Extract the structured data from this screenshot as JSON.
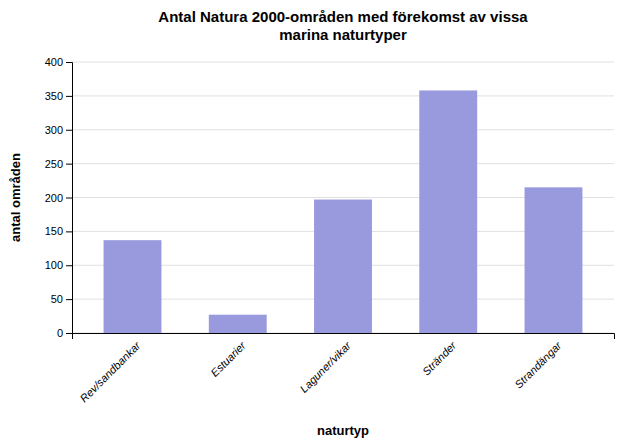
{
  "chart_data": {
    "type": "bar",
    "title": "Antal Natura 2000-områden med förekomst av vissa\nmarina naturtyper",
    "categories": [
      "Rev/sandbankar",
      "Estuarier",
      "Laguner/vikar",
      "Stränder",
      "Strandängar"
    ],
    "values": [
      137,
      27,
      197,
      358,
      215
    ],
    "color": "#9999dd",
    "xlabel": "naturtyp",
    "ylabel": "antal områden",
    "ylim": [
      0,
      400
    ],
    "yticks": [
      0,
      50,
      100,
      150,
      200,
      250,
      300,
      350,
      400
    ],
    "grid": true
  }
}
